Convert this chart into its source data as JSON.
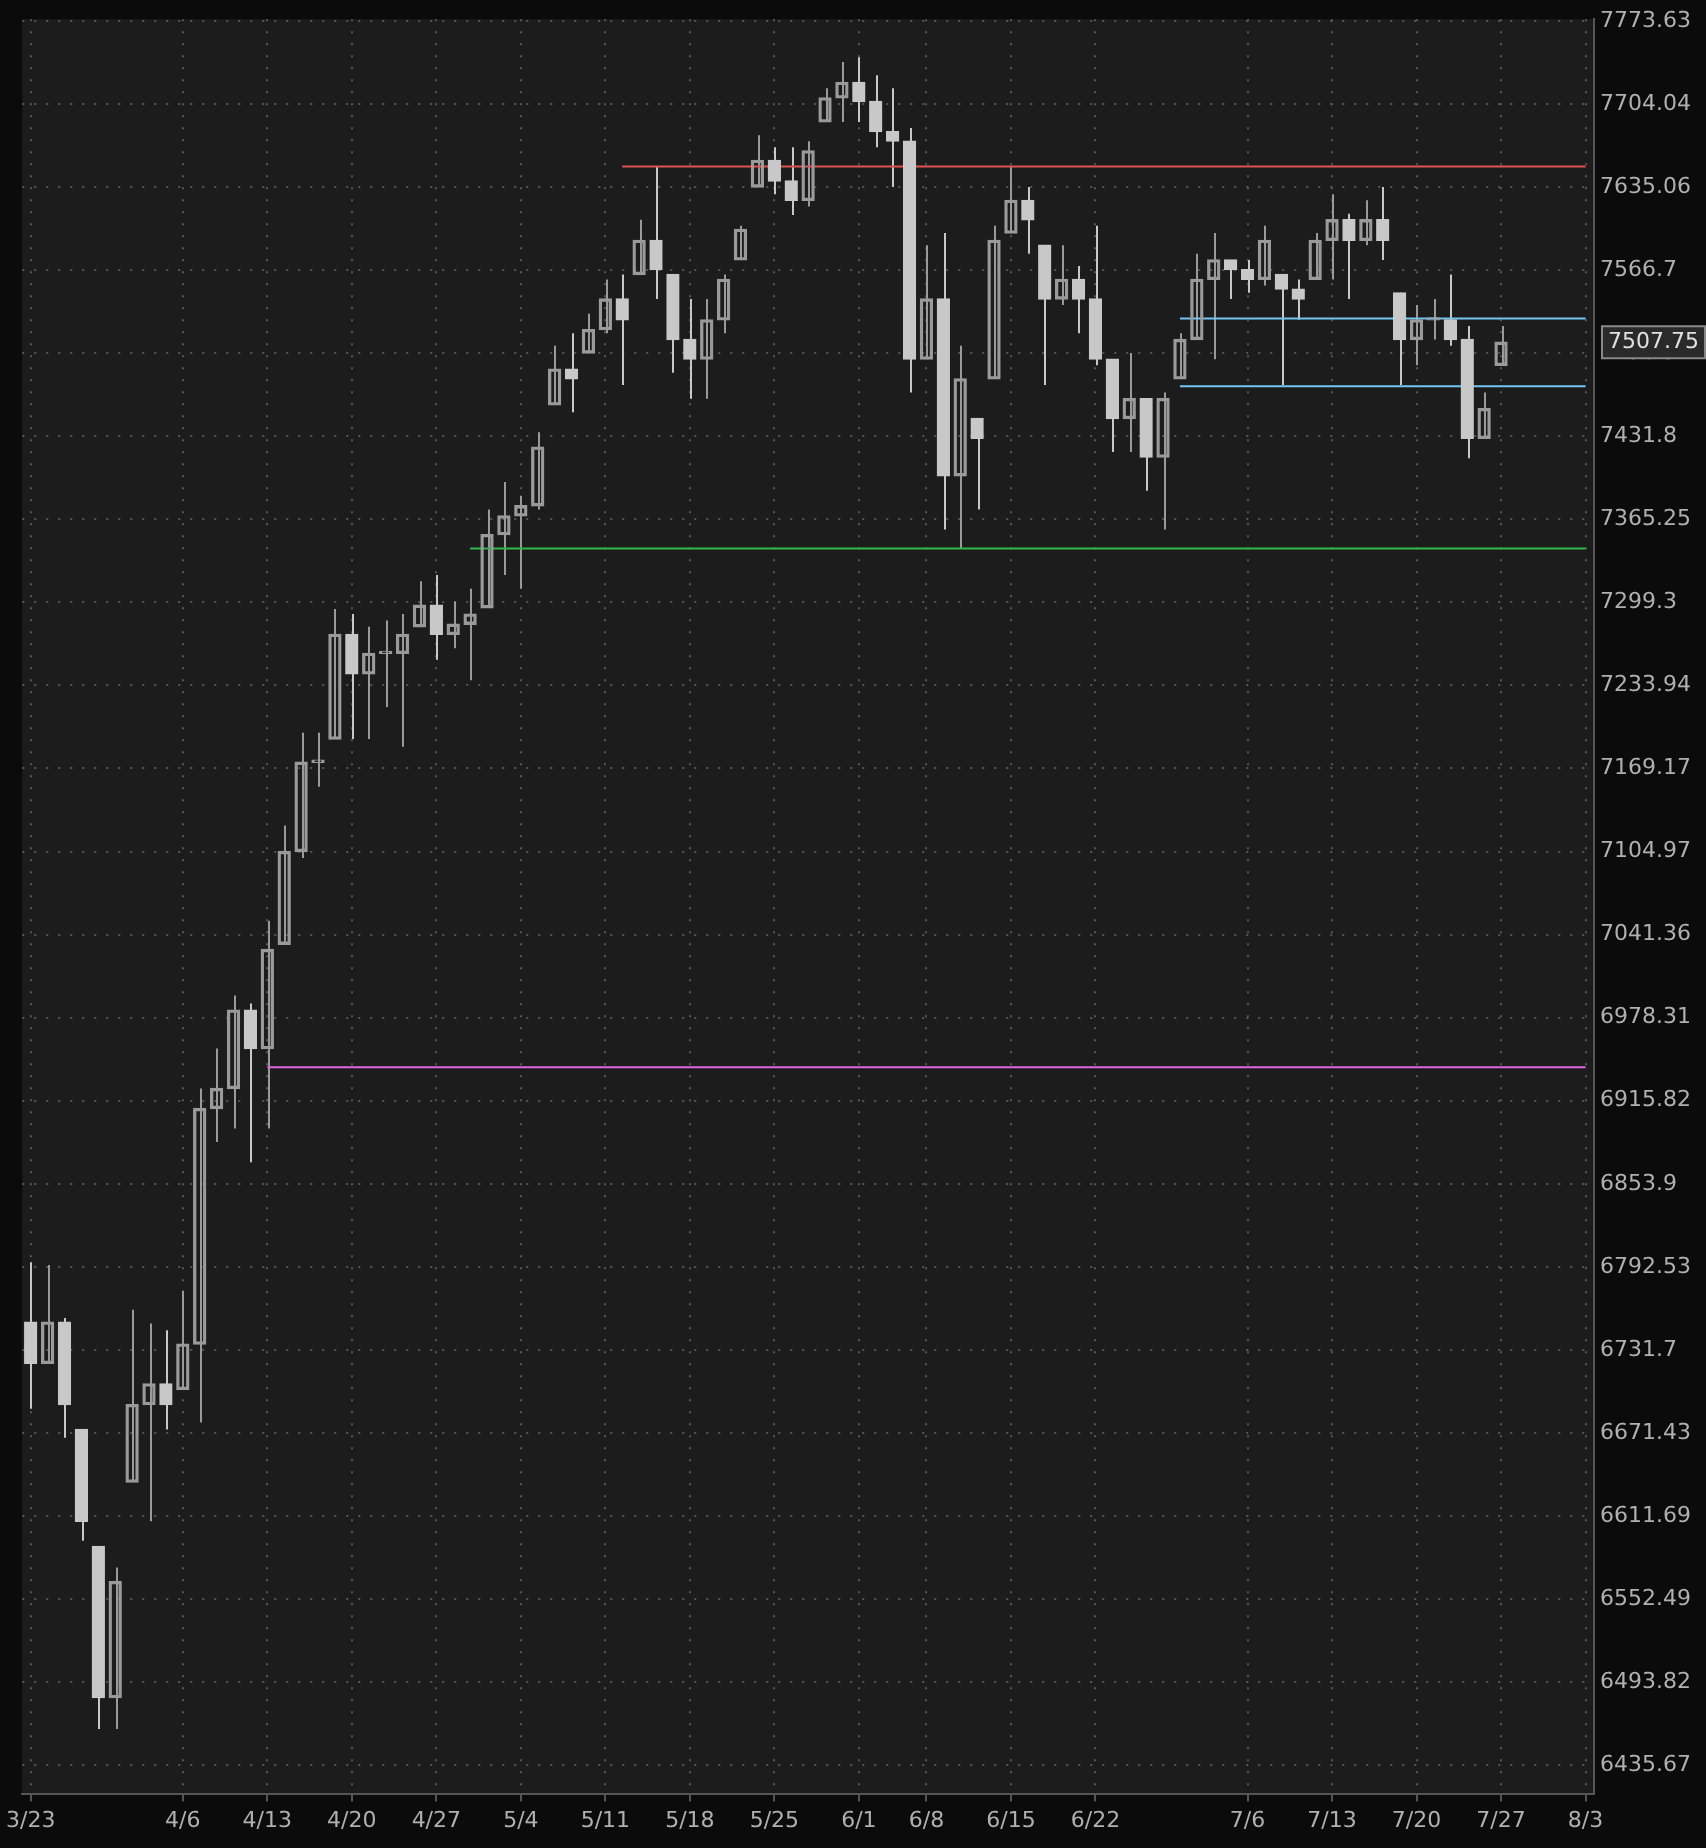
{
  "chart_data": {
    "type": "candlestick",
    "colors": [
      "#c8c8c8",
      "#9a9a9a",
      "#c8c8c8",
      "#c8c8c8",
      "#c8c8c8",
      "#9a9a9a",
      "#9a9a9a",
      "#9a9a9a",
      "#c8c8c8",
      "#9a9a9a",
      "#9a9a9a",
      "#9a9a9a",
      "#9a9a9a",
      "#c8c8c8",
      "#9a9a9a",
      "#9a9a9a",
      "#9a9a9a",
      "#9a9a9a",
      "#9a9a9a",
      "#c8c8c8",
      "#9a9a9a",
      "#9a9a9a",
      "#9a9a9a",
      "#9a9a9a",
      "#c8c8c8",
      "#9a9a9a",
      "#9a9a9a",
      "#9a9a9a",
      "#9a9a9a",
      "#9a9a9a",
      "#9a9a9a",
      "#9a9a9a",
      "#c8c8c8",
      "#9a9a9a",
      "#9a9a9a",
      "#c8c8c8",
      "#9a9a9a",
      "#c8c8c8",
      "#c8c8c8",
      "#c8c8c8",
      "#9a9a9a",
      "#9a9a9a",
      "#9a9a9a",
      "#9a9a9a",
      "#c8c8c8",
      "#c8c8c8",
      "#9a9a9a",
      "#9a9a9a",
      "#9a9a9a",
      "#c8c8c8",
      "#c8c8c8",
      "#c8c8c8",
      "#c8c8c8",
      "#9a9a9a",
      "#c8c8c8",
      "#9a9a9a",
      "#c8c8c8",
      "#9a9a9a",
      "#9a9a9a",
      "#c8c8c8",
      "#c8c8c8",
      "#9a9a9a",
      "#c8c8c8",
      "#c8c8c8",
      "#c8c8c8",
      "#9a9a9a",
      "#c8c8c8",
      "#9a9a9a",
      "#9a9a9a",
      "#9a9a9a",
      "#9a9a9a",
      "#c8c8c8",
      "#c8c8c8",
      "#9a9a9a",
      "#c8c8c8",
      "#c8c8c8",
      "#9a9a9a",
      "#9a9a9a",
      "#c8c8c8",
      "#9a9a9a",
      "#c8c8c8",
      "#c8c8c8",
      "#9a9a9a",
      "#9a9a9a",
      "#c8c8c8",
      "#c8c8c8",
      "#9a9a9a",
      "#9a9a9a",
      null,
      null,
      null,
      null,
      null
    ],
    "log": true,
    "grid": true,
    "legend": false,
    "categories": [
      "3/23",
      null,
      null,
      null,
      null,
      null,
      null,
      null,
      null,
      "4/6",
      null,
      null,
      null,
      null,
      "4/13",
      null,
      null,
      null,
      null,
      "4/20",
      null,
      null,
      null,
      null,
      "4/27",
      null,
      null,
      null,
      null,
      "5/4",
      null,
      null,
      null,
      null,
      "5/11",
      null,
      null,
      null,
      null,
      "5/18",
      null,
      null,
      null,
      null,
      "5/25",
      null,
      null,
      null,
      null,
      "6/1",
      null,
      null,
      null,
      "6/8",
      null,
      null,
      null,
      null,
      "6/15",
      null,
      null,
      null,
      null,
      "6/22",
      null,
      null,
      null,
      null,
      null,
      null,
      null,
      null,
      "7/6",
      null,
      null,
      null,
      null,
      "7/13",
      null,
      null,
      null,
      null,
      "7/20",
      null,
      null,
      null,
      null,
      "7/27",
      null,
      null,
      null,
      null,
      "8/3"
    ],
    "ohlc": [
      [
        6752,
        6796,
        6689,
        6722
      ],
      [
        6722,
        6794,
        6722,
        6752
      ],
      [
        6752,
        6755,
        6668,
        6692
      ],
      [
        6674,
        6674,
        6594,
        6608
      ],
      [
        6590,
        6590,
        6461,
        6483
      ],
      [
        6483,
        6575,
        6461,
        6565
      ],
      [
        6636,
        6761,
        6636,
        6692
      ],
      [
        6692,
        6751,
        6608,
        6707
      ],
      [
        6707,
        6746,
        6674,
        6692
      ],
      [
        6703,
        6775,
        6703,
        6736
      ],
      [
        6736,
        6925,
        6679,
        6910
      ],
      [
        6910,
        6955,
        6885,
        6925
      ],
      [
        6925,
        6995,
        6895,
        6984
      ],
      [
        6984,
        6989,
        6870,
        6955
      ],
      [
        6955,
        7052,
        6895,
        7030
      ],
      [
        7034,
        7125,
        7034,
        7105
      ],
      [
        7105,
        7197,
        7100,
        7174
      ],
      [
        7174,
        7197,
        7155,
        7174
      ],
      [
        7192,
        7294,
        7192,
        7274
      ],
      [
        7274,
        7290,
        7192,
        7243
      ],
      [
        7243,
        7280,
        7192,
        7259
      ],
      [
        7259,
        7285,
        7217,
        7259
      ],
      [
        7259,
        7290,
        7186,
        7274
      ],
      [
        7280,
        7316,
        7280,
        7297
      ],
      [
        7297,
        7321,
        7254,
        7274
      ],
      [
        7274,
        7300,
        7263,
        7282
      ],
      [
        7282,
        7310,
        7238,
        7290
      ],
      [
        7295,
        7373,
        7295,
        7353
      ],
      [
        7353,
        7395,
        7321,
        7368
      ],
      [
        7368,
        7384,
        7310,
        7376
      ],
      [
        7376,
        7435,
        7373,
        7423
      ],
      [
        7457,
        7505,
        7457,
        7486
      ],
      [
        7486,
        7515,
        7451,
        7478
      ],
      [
        7499,
        7531,
        7499,
        7518
      ],
      [
        7518,
        7559,
        7515,
        7543
      ],
      [
        7543,
        7563,
        7473,
        7526
      ],
      [
        7563,
        7608,
        7563,
        7591
      ],
      [
        7591,
        7652,
        7543,
        7567
      ],
      [
        7563,
        7563,
        7483,
        7510
      ],
      [
        7510,
        7543,
        7462,
        7494
      ],
      [
        7494,
        7543,
        7462,
        7526
      ],
      [
        7526,
        7563,
        7515,
        7559
      ],
      [
        7575,
        7603,
        7575,
        7600
      ],
      [
        7635,
        7678,
        7635,
        7657
      ],
      [
        7657,
        7668,
        7629,
        7640
      ],
      [
        7640,
        7668,
        7612,
        7624
      ],
      [
        7624,
        7673,
        7619,
        7665
      ],
      [
        7689,
        7717,
        7689,
        7709
      ],
      [
        7709,
        7739,
        7689,
        7722
      ],
      [
        7722,
        7743,
        7689,
        7706
      ],
      [
        7706,
        7728,
        7668,
        7681
      ],
      [
        7681,
        7717,
        7635,
        7673
      ],
      [
        7673,
        7684,
        7467,
        7494
      ],
      [
        7494,
        7587,
        7494,
        7543
      ],
      [
        7543,
        7597,
        7357,
        7400
      ],
      [
        7400,
        7505,
        7342,
        7478
      ],
      [
        7446,
        7446,
        7373,
        7430
      ],
      [
        7478,
        7603,
        7478,
        7591
      ],
      [
        7597,
        7652,
        7597,
        7624
      ],
      [
        7624,
        7635,
        7580,
        7608
      ],
      [
        7587,
        7587,
        7473,
        7543
      ],
      [
        7543,
        7587,
        7538,
        7559
      ],
      [
        7559,
        7570,
        7515,
        7543
      ],
      [
        7543,
        7603,
        7489,
        7494
      ],
      [
        7494,
        7494,
        7419,
        7446
      ],
      [
        7446,
        7499,
        7419,
        7462
      ],
      [
        7462,
        7462,
        7388,
        7415
      ],
      [
        7415,
        7467,
        7357,
        7462
      ],
      [
        7478,
        7515,
        7478,
        7510
      ],
      [
        7510,
        7580,
        7510,
        7559
      ],
      [
        7559,
        7597,
        7494,
        7575
      ],
      [
        7575,
        7575,
        7543,
        7567
      ],
      [
        7567,
        7575,
        7548,
        7559
      ],
      [
        7559,
        7603,
        7554,
        7591
      ],
      [
        7563,
        7563,
        7473,
        7551
      ],
      [
        7551,
        7559,
        7526,
        7543
      ],
      [
        7559,
        7597,
        7559,
        7591
      ],
      [
        7591,
        7629,
        7559,
        7608
      ],
      [
        7608,
        7613,
        7543,
        7591
      ],
      [
        7591,
        7624,
        7587,
        7608
      ],
      [
        7608,
        7635,
        7575,
        7591
      ],
      [
        7548,
        7548,
        7473,
        7510
      ],
      [
        7510,
        7538,
        7489,
        7526
      ],
      [
        7526,
        7543,
        7510,
        7526
      ],
      [
        7526,
        7563,
        7505,
        7510
      ],
      [
        7510,
        7521,
        7414,
        7430
      ],
      [
        7430,
        7467,
        7430,
        7454
      ],
      [
        7489,
        7521,
        7489,
        7507.75
      ],
      null,
      null,
      null,
      null,
      null
    ],
    "series": [
      {
        "type": "line",
        "color": "#e066e0",
        "values": [
          null,
          null,
          null,
          null,
          null,
          null,
          null,
          null,
          null,
          null,
          null,
          null,
          null,
          null,
          6941,
          6941,
          6941,
          6941,
          6941,
          6941,
          6941,
          6941,
          6941,
          6941,
          6941,
          6941,
          6941,
          6941,
          6941,
          6941,
          6941,
          6941,
          6941,
          6941,
          6941,
          6941,
          6941,
          6941,
          6941,
          6941,
          6941,
          6941,
          6941,
          6941,
          6941,
          6941,
          6941,
          6941,
          6941,
          6941,
          6941,
          6941,
          6941,
          6941,
          6941,
          6941,
          6941,
          6941,
          6941,
          6941,
          6941,
          6941,
          6941,
          6941,
          6941,
          6941,
          6941,
          6941,
          6941,
          6941,
          6941,
          6941,
          6941,
          6941,
          6941,
          6941,
          6941,
          6941,
          6941,
          6941,
          6941,
          6941,
          6941,
          6941,
          6941,
          6941,
          6941,
          6941,
          6941,
          6941,
          6941,
          6941,
          6941
        ]
      },
      {
        "type": "line",
        "color": "#2eb84a",
        "values": [
          null,
          null,
          null,
          null,
          null,
          null,
          null,
          null,
          null,
          null,
          null,
          null,
          null,
          null,
          null,
          null,
          null,
          null,
          null,
          null,
          null,
          null,
          null,
          null,
          null,
          null,
          7342,
          7342,
          7342,
          7342,
          7342,
          7342,
          7342,
          7342,
          7342,
          7342,
          7342,
          7342,
          7342,
          7342,
          7342,
          7342,
          7342,
          7342,
          7342,
          7342,
          7342,
          7342,
          7342,
          7342,
          7342,
          7342,
          7342,
          7342,
          7342,
          7342,
          7342,
          7342,
          7342,
          7342,
          7342,
          7342,
          7342,
          7342,
          7342,
          7342,
          7342,
          7342,
          7342,
          7342,
          7342,
          7342,
          7342,
          7342,
          7342,
          7342,
          7342,
          7342,
          7342,
          7342,
          7342,
          7342,
          7342,
          7342,
          7342,
          7342,
          7342,
          7342,
          7342,
          7342,
          7342,
          7342,
          7342
        ]
      },
      {
        "type": "line",
        "color": "#e05252",
        "values": [
          null,
          null,
          null,
          null,
          null,
          null,
          null,
          null,
          null,
          null,
          null,
          null,
          null,
          null,
          null,
          null,
          null,
          null,
          null,
          null,
          null,
          null,
          null,
          null,
          null,
          null,
          null,
          null,
          null,
          null,
          null,
          null,
          null,
          null,
          null,
          7652,
          7652,
          7652,
          7652,
          7652,
          7652,
          7652,
          7652,
          7652,
          7652,
          7652,
          7652,
          7652,
          7652,
          7652,
          7652,
          7652,
          7652,
          7652,
          7652,
          7652,
          7652,
          7652,
          7652,
          7652,
          7652,
          7652,
          7652,
          7652,
          7652,
          7652,
          7652,
          7652,
          7652,
          7652,
          7652,
          7652,
          7652,
          7652,
          7652,
          7652,
          7652,
          7652,
          7652,
          7652,
          7652,
          7652,
          7652,
          7652,
          7652,
          7652,
          7652,
          7652,
          7652,
          7652,
          7652,
          7652,
          7652
        ]
      },
      {
        "type": "line",
        "color": "#74c4f0",
        "values": [
          null,
          null,
          null,
          null,
          null,
          null,
          null,
          null,
          null,
          null,
          null,
          null,
          null,
          null,
          null,
          null,
          null,
          null,
          null,
          null,
          null,
          null,
          null,
          null,
          null,
          null,
          null,
          null,
          null,
          null,
          null,
          null,
          null,
          null,
          null,
          null,
          null,
          null,
          null,
          null,
          null,
          null,
          null,
          null,
          null,
          null,
          null,
          null,
          null,
          null,
          null,
          null,
          null,
          null,
          null,
          null,
          null,
          null,
          null,
          null,
          null,
          null,
          null,
          null,
          null,
          null,
          null,
          null,
          7527,
          7527,
          7527,
          7527,
          7527,
          7527,
          7527,
          7527,
          7527,
          7527,
          7527,
          7527,
          7527,
          7527,
          7527,
          7527,
          7527,
          7527,
          7527,
          7527,
          7527,
          7527,
          7527,
          7527,
          7527
        ]
      },
      {
        "type": "line",
        "color": "#74c4f0",
        "values": [
          null,
          null,
          null,
          null,
          null,
          null,
          null,
          null,
          null,
          null,
          null,
          null,
          null,
          null,
          null,
          null,
          null,
          null,
          null,
          null,
          null,
          null,
          null,
          null,
          null,
          null,
          null,
          null,
          null,
          null,
          null,
          null,
          null,
          null,
          null,
          null,
          null,
          null,
          null,
          null,
          null,
          null,
          null,
          null,
          null,
          null,
          null,
          null,
          null,
          null,
          null,
          null,
          null,
          null,
          null,
          null,
          null,
          null,
          null,
          null,
          null,
          null,
          null,
          null,
          null,
          null,
          null,
          null,
          7472,
          7472,
          7472,
          7472,
          7472,
          7472,
          7472,
          7472,
          7472,
          7472,
          7472,
          7472,
          7472,
          7472,
          7472,
          7472,
          7472,
          7472,
          7472,
          7472,
          7472,
          7472,
          7472,
          7472,
          7472
        ]
      }
    ],
    "ylim": [
      6416,
      7775
    ],
    "yticks": [
      6435.67,
      6493.82,
      6552.49,
      6611.69,
      6671.43,
      6731.7,
      6792.53,
      6853.9,
      6915.82,
      6978.31,
      7041.36,
      7104.97,
      7169.17,
      7233.94,
      7299.3,
      7365.25,
      7431.8,
      7498.94,
      7566.7,
      7635.06,
      7704.04,
      7773.63
    ],
    "annotations": [
      "7507.75"
    ]
  }
}
